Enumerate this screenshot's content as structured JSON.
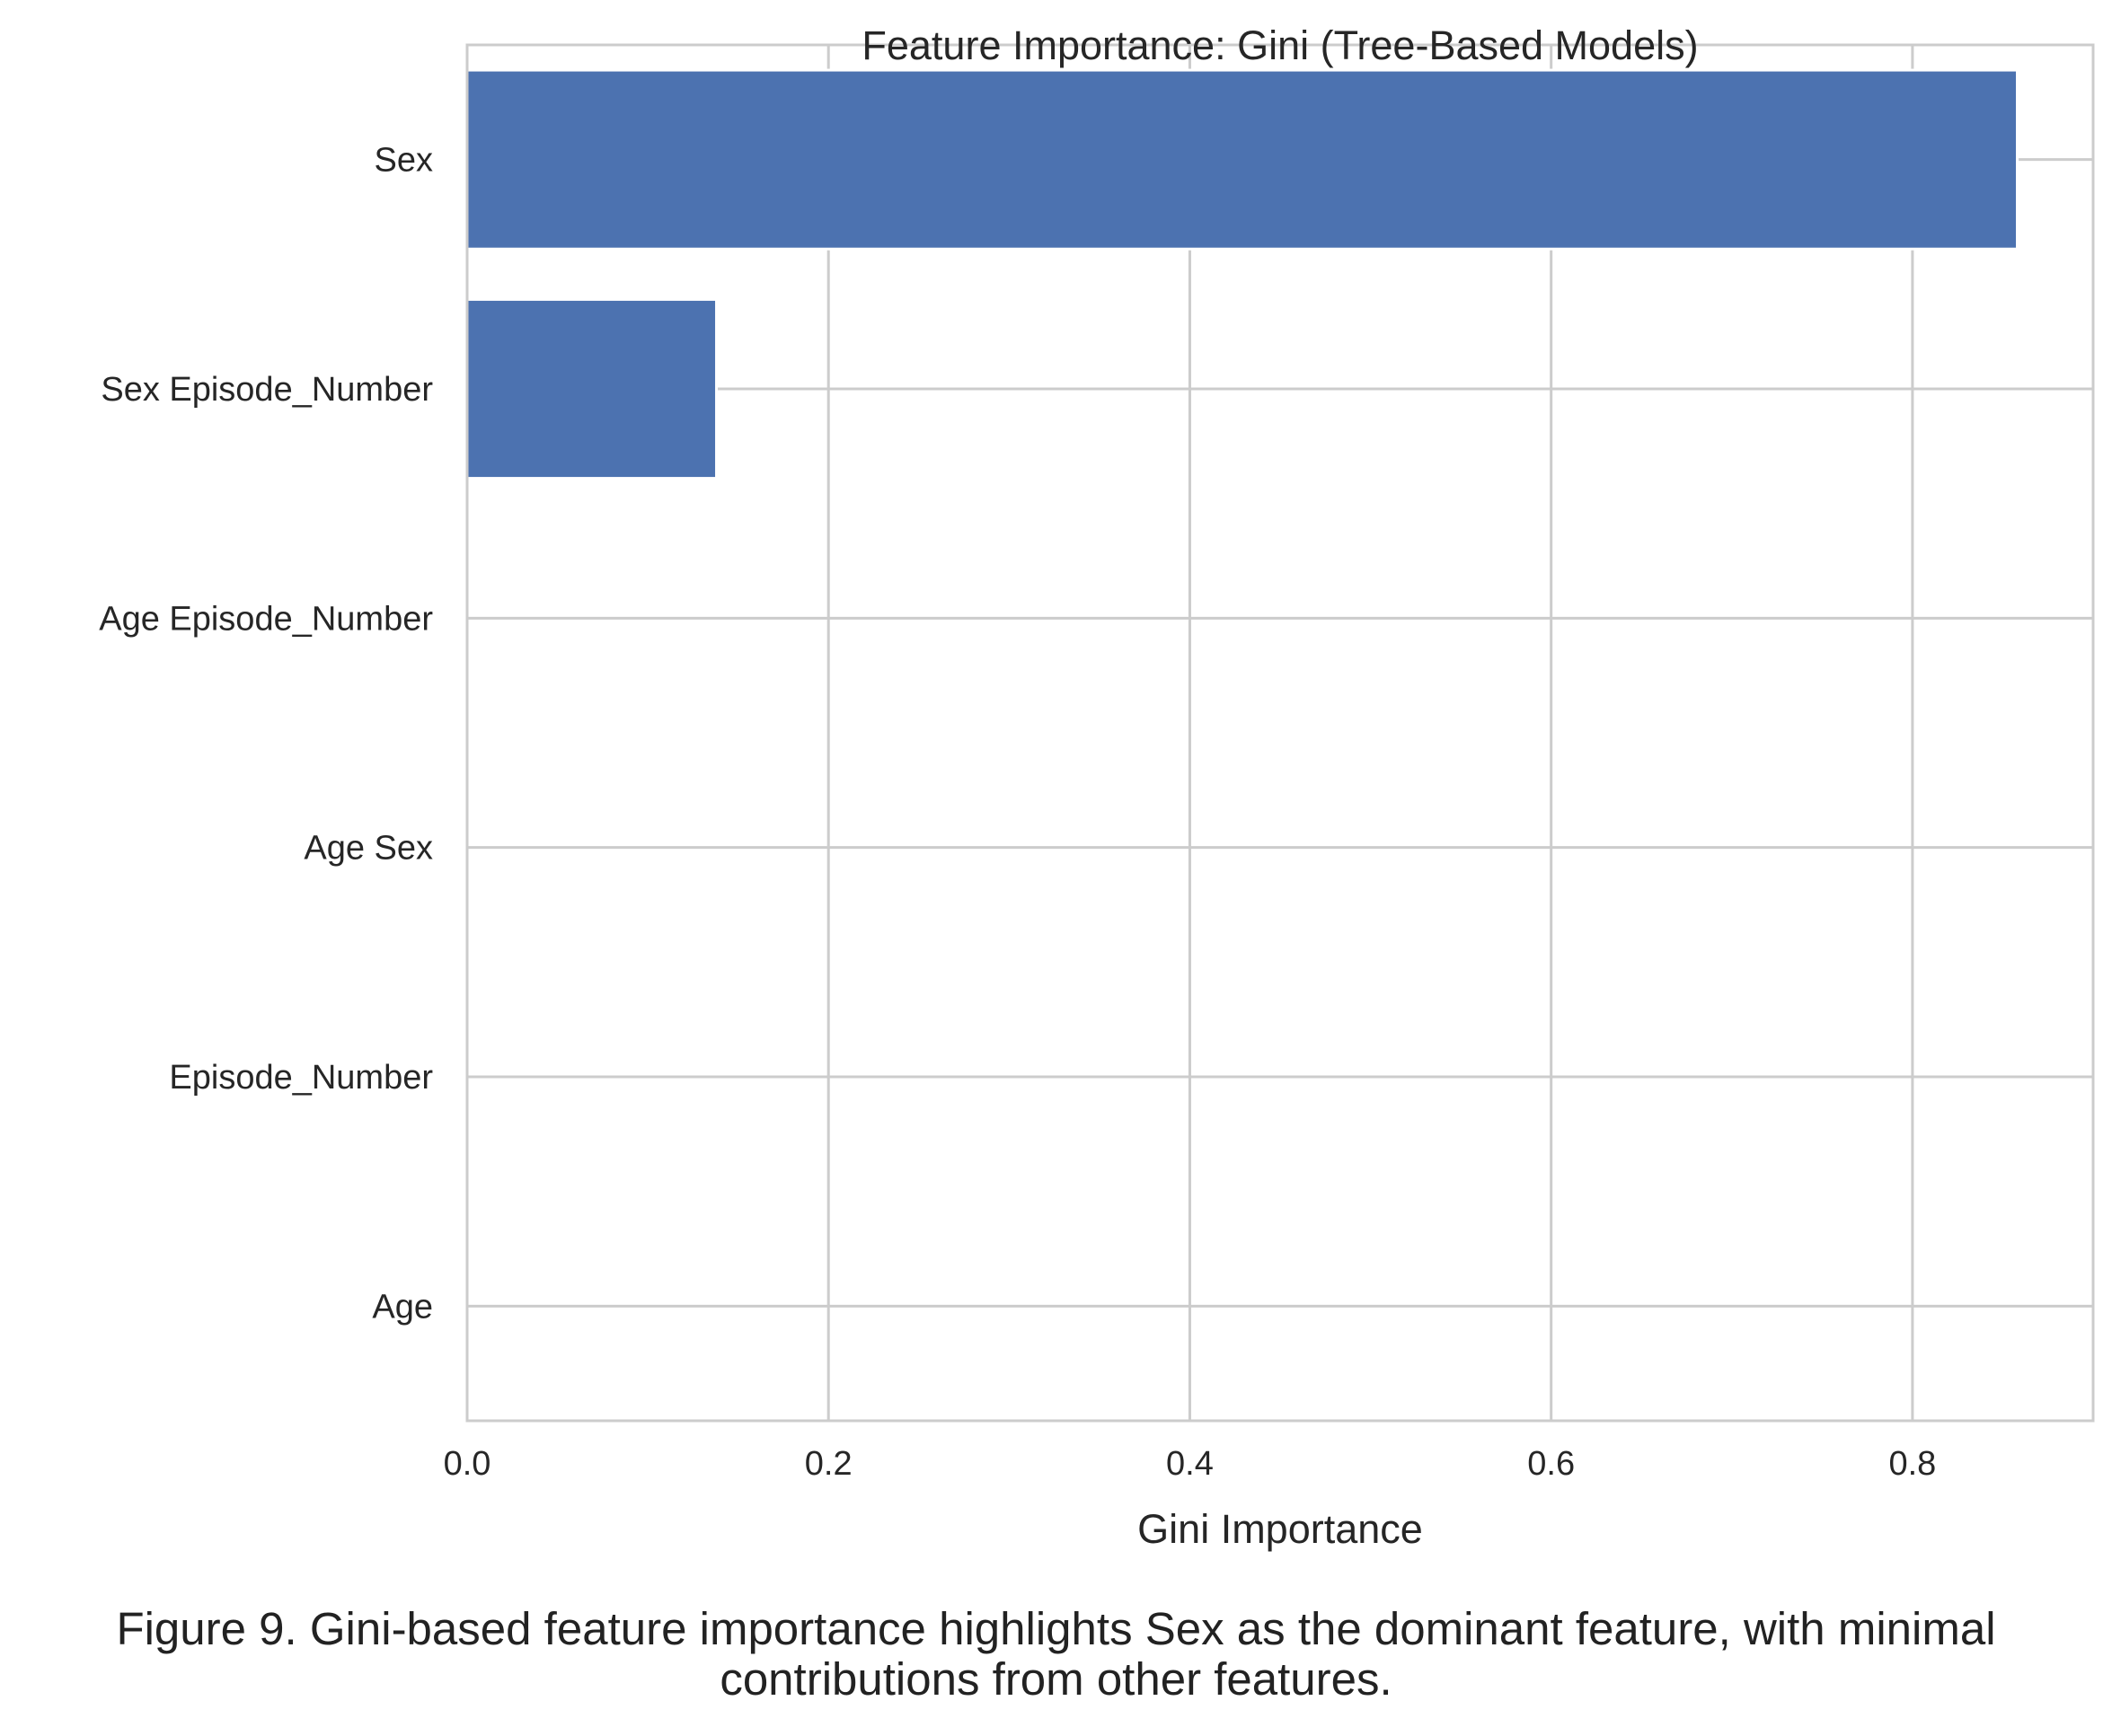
{
  "chart_data": {
    "type": "bar",
    "orientation": "horizontal",
    "title": "Feature Importance: Gini (Tree-Based Models)",
    "xlabel": "Gini Importance",
    "ylabel": "",
    "categories": [
      "Sex",
      "Sex Episode_Number",
      "Age Episode_Number",
      "Age Sex",
      "Episode_Number",
      "Age"
    ],
    "values": [
      0.858,
      0.138,
      0.0,
      0.0,
      0.0,
      0.0
    ],
    "xlim": [
      0.0,
      0.9
    ],
    "xticks": [
      0.0,
      0.2,
      0.4,
      0.6,
      0.8
    ],
    "xtick_labels": [
      "0.0",
      "0.2",
      "0.4",
      "0.6",
      "0.8"
    ],
    "grid": true,
    "bar_color": "#4c72b0",
    "grid_color": "#cccccc"
  },
  "caption": {
    "line1": "Figure 9. Gini-based feature importance highlights Sex as the dominant feature, with minimal",
    "line2": "contributions from other features."
  }
}
